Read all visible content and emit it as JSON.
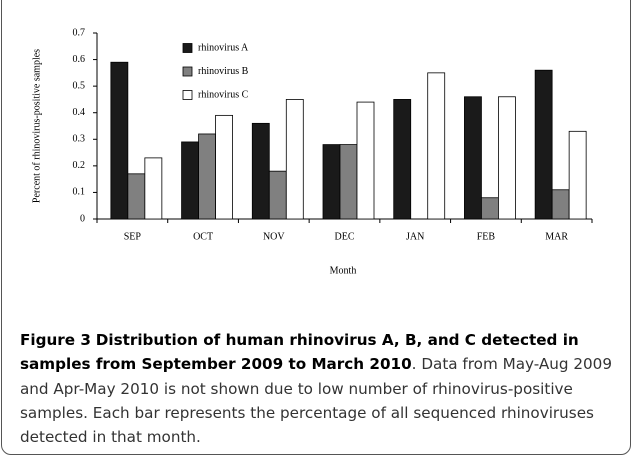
{
  "chart_data": {
    "type": "bar",
    "ylabel": "Percent of rhinovirus-positive samples",
    "xlabel": "Month",
    "categories": [
      "SEP",
      "OCT",
      "NOV",
      "DEC",
      "JAN",
      "FEB",
      "MAR"
    ],
    "series": [
      {
        "name": "rhinovirus A",
        "color": "#1a1a1a",
        "values": [
          0.59,
          0.29,
          0.36,
          0.28,
          0.45,
          0.46,
          0.56
        ]
      },
      {
        "name": "rhinovirus B",
        "color": "#808080",
        "values": [
          0.17,
          0.32,
          0.18,
          0.28,
          0,
          0.08,
          0.11
        ]
      },
      {
        "name": "rhinovirus C",
        "color": "#ffffff",
        "values": [
          0.23,
          0.39,
          0.45,
          0.44,
          0.55,
          0.46,
          0.33
        ]
      }
    ],
    "ylim": [
      0,
      0.7
    ],
    "yticks": [
      0,
      0.1,
      0.2,
      0.3,
      0.4,
      0.5,
      0.6,
      0.7
    ],
    "grid": false
  },
  "caption": {
    "label": "Figure 3",
    "title": "Distribution of human rhinovirus A, B, and C detected in samples from September 2009 to March 2010",
    "text": ". Data from May-Aug 2009 and Apr-May 2010 is not shown due to low number of rhinovirus-positive samples. Each bar represents the percentage of all sequenced rhinoviruses detected in that month."
  }
}
